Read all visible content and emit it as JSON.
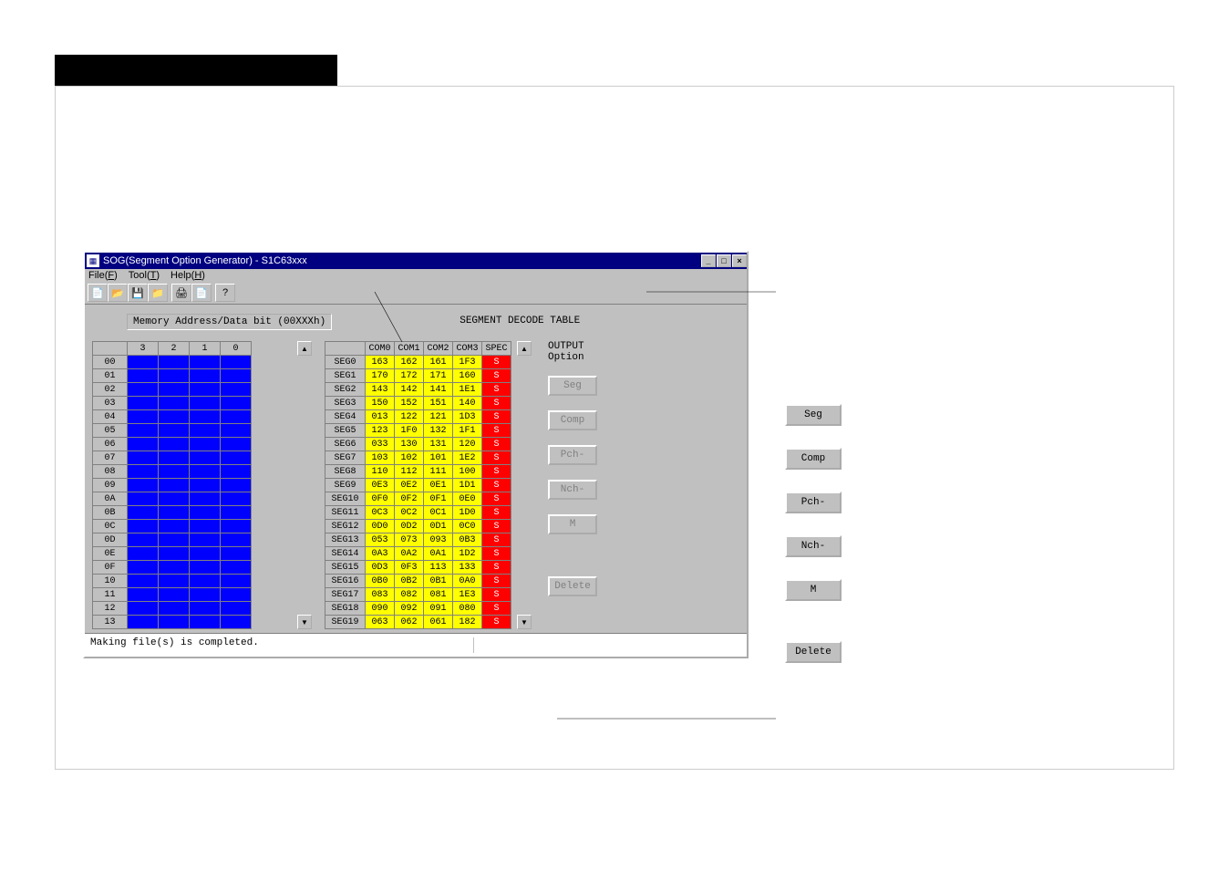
{
  "blackbar_height": 34,
  "window": {
    "title": "SOG(Segment Option Generator) - S1C63xxx",
    "menu": {
      "file": "File(F)",
      "tool": "Tool(T)",
      "help": "Help(H)"
    },
    "toolbar_icons": [
      "📄",
      "📂",
      "💾",
      "📁",
      "🖨",
      "📄",
      "?"
    ]
  },
  "labels": {
    "memory": "Memory Address/Data bit (00XXXh)",
    "segment": "SEGMENT DECODE TABLE",
    "output_title": "OUTPUT",
    "output_sub": "Option"
  },
  "memory": {
    "cols": [
      "3",
      "2",
      "1",
      "0"
    ],
    "rows": [
      "00",
      "01",
      "02",
      "03",
      "04",
      "05",
      "06",
      "07",
      "08",
      "09",
      "0A",
      "0B",
      "0C",
      "0D",
      "0E",
      "0F",
      "10",
      "11",
      "12",
      "13"
    ],
    "cell_blue_color": "#0000ff"
  },
  "segment": {
    "cols": [
      "",
      "COM0",
      "COM1",
      "COM2",
      "COM3",
      "SPEC"
    ],
    "rows": [
      {
        "seg": "SEG0",
        "c": [
          "163",
          "162",
          "161",
          "1F3"
        ],
        "spec": "S"
      },
      {
        "seg": "SEG1",
        "c": [
          "170",
          "172",
          "171",
          "160"
        ],
        "spec": "S"
      },
      {
        "seg": "SEG2",
        "c": [
          "143",
          "142",
          "141",
          "1E1"
        ],
        "spec": "S"
      },
      {
        "seg": "SEG3",
        "c": [
          "150",
          "152",
          "151",
          "140"
        ],
        "spec": "S"
      },
      {
        "seg": "SEG4",
        "c": [
          "013",
          "122",
          "121",
          "1D3"
        ],
        "spec": "S"
      },
      {
        "seg": "SEG5",
        "c": [
          "123",
          "1F0",
          "132",
          "1F1"
        ],
        "spec": "S"
      },
      {
        "seg": "SEG6",
        "c": [
          "033",
          "130",
          "131",
          "120"
        ],
        "spec": "S"
      },
      {
        "seg": "SEG7",
        "c": [
          "103",
          "102",
          "101",
          "1E2"
        ],
        "spec": "S"
      },
      {
        "seg": "SEG8",
        "c": [
          "110",
          "112",
          "111",
          "100"
        ],
        "spec": "S"
      },
      {
        "seg": "SEG9",
        "c": [
          "0E3",
          "0E2",
          "0E1",
          "1D1"
        ],
        "spec": "S"
      },
      {
        "seg": "SEG10",
        "c": [
          "0F0",
          "0F2",
          "0F1",
          "0E0"
        ],
        "spec": "S"
      },
      {
        "seg": "SEG11",
        "c": [
          "0C3",
          "0C2",
          "0C1",
          "1D0"
        ],
        "spec": "S"
      },
      {
        "seg": "SEG12",
        "c": [
          "0D0",
          "0D2",
          "0D1",
          "0C0"
        ],
        "spec": "S"
      },
      {
        "seg": "SEG13",
        "c": [
          "053",
          "073",
          "093",
          "0B3"
        ],
        "spec": "S"
      },
      {
        "seg": "SEG14",
        "c": [
          "0A3",
          "0A2",
          "0A1",
          "1D2"
        ],
        "spec": "S"
      },
      {
        "seg": "SEG15",
        "c": [
          "0D3",
          "0F3",
          "113",
          "133"
        ],
        "spec": "S"
      },
      {
        "seg": "SEG16",
        "c": [
          "0B0",
          "0B2",
          "0B1",
          "0A0"
        ],
        "spec": "S"
      },
      {
        "seg": "SEG17",
        "c": [
          "083",
          "082",
          "081",
          "1E3"
        ],
        "spec": "S"
      },
      {
        "seg": "SEG18",
        "c": [
          "090",
          "092",
          "091",
          "080"
        ],
        "spec": "S"
      },
      {
        "seg": "SEG19",
        "c": [
          "063",
          "062",
          "061",
          "182"
        ],
        "spec": "S"
      }
    ],
    "cell_yellow_color": "#ffff00",
    "spec_color": "#ff0000"
  },
  "out_buttons": [
    "Seg",
    "Comp",
    "Pch-",
    "Nch-",
    "M",
    "Delete"
  ],
  "legend_buttons": [
    "Seg",
    "Comp",
    "Pch-",
    "Nch-",
    "M",
    "Delete"
  ],
  "status": "Making file(s) is completed."
}
